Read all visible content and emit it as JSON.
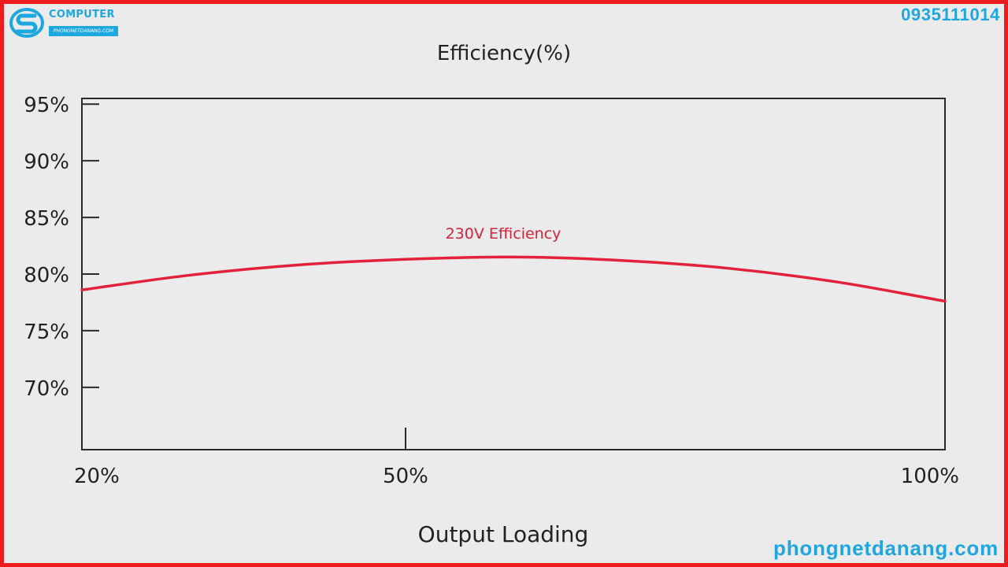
{
  "watermark": {
    "logo_text": "COMPUTER",
    "logo_sub": "PHONGNETDANANG.COM",
    "phone": "0935111014",
    "website": "phongnetdanang.com",
    "brand_color": "#1fa6e0",
    "frame_color": "#ee1c1c"
  },
  "chart_data": {
    "type": "line",
    "title": "Efficiency(%)",
    "xlabel": "Output Loading",
    "ylabel": "",
    "x_ticks": [
      {
        "value": 20,
        "label": "20%"
      },
      {
        "value": 50,
        "label": "50%"
      },
      {
        "value": 100,
        "label": "100%"
      }
    ],
    "y_ticks": [
      {
        "value": 70,
        "label": "70%"
      },
      {
        "value": 75,
        "label": "75%"
      },
      {
        "value": 80,
        "label": "80%"
      },
      {
        "value": 85,
        "label": "85%"
      },
      {
        "value": 90,
        "label": "90%"
      },
      {
        "value": 95,
        "label": "95%"
      }
    ],
    "xlim": [
      20,
      100
    ],
    "ylim": [
      64.5,
      95.5
    ],
    "grid": false,
    "series": [
      {
        "name": "230V Efficiency",
        "color": "#e3213a",
        "points": [
          {
            "x": 20,
            "y": 78.6
          },
          {
            "x": 30,
            "y": 79.9
          },
          {
            "x": 40,
            "y": 80.8
          },
          {
            "x": 50,
            "y": 81.3
          },
          {
            "x": 60,
            "y": 81.5
          },
          {
            "x": 70,
            "y": 81.2
          },
          {
            "x": 80,
            "y": 80.5
          },
          {
            "x": 90,
            "y": 79.3
          },
          {
            "x": 100,
            "y": 77.6
          }
        ]
      }
    ]
  }
}
